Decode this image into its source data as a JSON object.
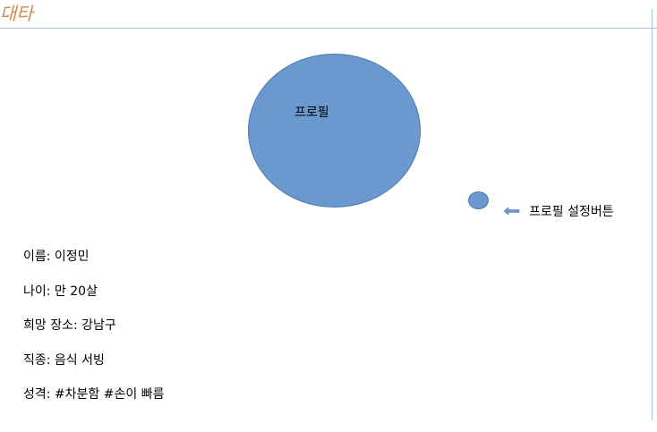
{
  "header": {
    "title": "대타"
  },
  "profile": {
    "circle_label": "프로필",
    "settings_button_label": "프로필 설정버튼",
    "arrow_icon": "left-arrow-icon"
  },
  "info": {
    "name": "이름: 이정민",
    "age": "나이: 만 20살",
    "place": "희망 장소: 강남구",
    "job": "직종: 음식 서빙",
    "personality": "성격: #차분함 #손이 빠름"
  },
  "colors": {
    "title": "#d4894d",
    "accent": "#6999cf",
    "rule": "#a9c3dc"
  }
}
